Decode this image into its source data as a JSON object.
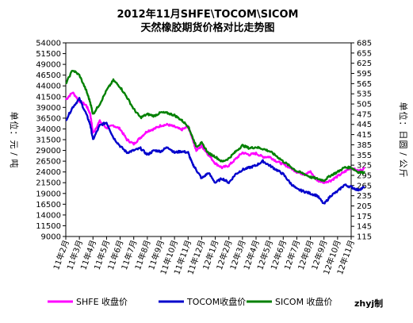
{
  "chart_data": {
    "type": "line",
    "title": "2012年11月SHFE\\TOCOM\\SICOM",
    "subtitle": "天然橡胶期货价格对比走势图",
    "ylabel_left": "单位：元/吨",
    "ylabel_right": "单位：日圆/公斤",
    "watermark": "zhyj制",
    "grid": false,
    "legend_position": "bottom",
    "left_axis": {
      "ylim": [
        9000,
        54000
      ],
      "ticks": [
        "54000",
        "51500",
        "49000",
        "46500",
        "44000",
        "41500",
        "39000",
        "36500",
        "34000",
        "31500",
        "29000",
        "26500",
        "24000",
        "21500",
        "19000",
        "16500",
        "14000",
        "11500",
        "9000"
      ]
    },
    "right_axis": {
      "ylim": [
        115,
        685
      ],
      "ticks": [
        "685",
        "655",
        "625",
        "595",
        "565",
        "535",
        "505",
        "475",
        "445",
        "415",
        "385",
        "355",
        "325",
        "295",
        "265",
        "235",
        "205",
        "175",
        "145",
        "115"
      ]
    },
    "categories": [
      "11年2月",
      "11年3月",
      "11年4月",
      "11年5月",
      "11年6月",
      "11年7月",
      "11年8月",
      "11年9月",
      "11年10月",
      "11年11月",
      "11年12月",
      "12年1月",
      "12年2月",
      "12年3月",
      "12年4月",
      "12年5月",
      "12年6月",
      "12年7月",
      "12年8月",
      "12年9月",
      "12年10月",
      "12年11月"
    ],
    "series": [
      {
        "name": "SHFE 收盘价",
        "axis": "left",
        "color": "#ff00ff",
        "values": [
          [
            0,
            40800
          ],
          [
            0.5,
            42500
          ],
          [
            1,
            40500
          ],
          [
            1.5,
            39500
          ],
          [
            1.8,
            37500
          ],
          [
            2,
            33000
          ],
          [
            2.5,
            35800
          ],
          [
            3,
            34200
          ],
          [
            3.5,
            34800
          ],
          [
            4,
            34000
          ],
          [
            4.5,
            31500
          ],
          [
            5,
            30500
          ],
          [
            5.5,
            32000
          ],
          [
            6,
            33500
          ],
          [
            6.5,
            34000
          ],
          [
            7,
            34800
          ],
          [
            7.5,
            35000
          ],
          [
            8,
            34500
          ],
          [
            8.5,
            33800
          ],
          [
            9,
            34500
          ],
          [
            9.3,
            32000
          ],
          [
            9.6,
            29000
          ],
          [
            10,
            30000
          ],
          [
            10.5,
            28000
          ],
          [
            11,
            26000
          ],
          [
            11.5,
            25000
          ],
          [
            12,
            25500
          ],
          [
            12.5,
            27000
          ],
          [
            13,
            28500
          ],
          [
            13.5,
            28000
          ],
          [
            14,
            28300
          ],
          [
            14.5,
            27500
          ],
          [
            15,
            27500
          ],
          [
            15.5,
            26500
          ],
          [
            16,
            25800
          ],
          [
            16.5,
            25000
          ],
          [
            17,
            24000
          ],
          [
            17.5,
            23500
          ],
          [
            18,
            24000
          ],
          [
            18.5,
            22000
          ],
          [
            19,
            21600
          ],
          [
            19.5,
            22000
          ],
          [
            20,
            23000
          ],
          [
            20.5,
            24000
          ],
          [
            21,
            25000
          ],
          [
            21.5,
            24200
          ],
          [
            22,
            24800
          ]
        ]
      },
      {
        "name": "TOCOM收盘价",
        "axis": "left",
        "color": "#0000cc",
        "values": [
          [
            0,
            36000
          ],
          [
            0.5,
            39000
          ],
          [
            1,
            41000
          ],
          [
            1.5,
            37500
          ],
          [
            1.8,
            35000
          ],
          [
            2,
            31500
          ],
          [
            2.5,
            34800
          ],
          [
            3,
            35500
          ],
          [
            3.5,
            32000
          ],
          [
            4,
            30000
          ],
          [
            4.5,
            28500
          ],
          [
            5,
            29000
          ],
          [
            5.5,
            29500
          ],
          [
            6,
            28000
          ],
          [
            6.5,
            29000
          ],
          [
            7,
            28800
          ],
          [
            7.5,
            29800
          ],
          [
            8,
            28500
          ],
          [
            8.5,
            28800
          ],
          [
            9,
            28500
          ],
          [
            9.3,
            26000
          ],
          [
            9.6,
            24500
          ],
          [
            10,
            22500
          ],
          [
            10.5,
            23800
          ],
          [
            11,
            21500
          ],
          [
            11.5,
            22500
          ],
          [
            12,
            21500
          ],
          [
            12.5,
            23500
          ],
          [
            13,
            24500
          ],
          [
            13.5,
            25000
          ],
          [
            14,
            25500
          ],
          [
            14.5,
            26500
          ],
          [
            15,
            25500
          ],
          [
            15.5,
            24500
          ],
          [
            16,
            23500
          ],
          [
            16.5,
            21500
          ],
          [
            17,
            20000
          ],
          [
            17.5,
            19500
          ],
          [
            18,
            19000
          ],
          [
            18.5,
            18500
          ],
          [
            19,
            16500
          ],
          [
            19.5,
            18500
          ],
          [
            20,
            19500
          ],
          [
            20.5,
            21000
          ],
          [
            21,
            20500
          ],
          [
            21.5,
            19800
          ],
          [
            22,
            20500
          ]
        ]
      },
      {
        "name": "SICOM 收盘价",
        "axis": "right",
        "color": "#008000",
        "values": [
          [
            0,
            565
          ],
          [
            0.5,
            605
          ],
          [
            1,
            590
          ],
          [
            1.5,
            545
          ],
          [
            1.8,
            510
          ],
          [
            2,
            475
          ],
          [
            2.5,
            505
          ],
          [
            3,
            545
          ],
          [
            3.5,
            575
          ],
          [
            4,
            555
          ],
          [
            4.5,
            525
          ],
          [
            5,
            490
          ],
          [
            5.5,
            465
          ],
          [
            6,
            475
          ],
          [
            6.5,
            470
          ],
          [
            7,
            480
          ],
          [
            7.5,
            478
          ],
          [
            8,
            472
          ],
          [
            8.5,
            458
          ],
          [
            9,
            440
          ],
          [
            9.3,
            410
          ],
          [
            9.6,
            380
          ],
          [
            10,
            390
          ],
          [
            10.5,
            360
          ],
          [
            11,
            350
          ],
          [
            11.5,
            335
          ],
          [
            12,
            345
          ],
          [
            12.5,
            365
          ],
          [
            13,
            383
          ],
          [
            13.5,
            375
          ],
          [
            14,
            378
          ],
          [
            14.5,
            373
          ],
          [
            15,
            366
          ],
          [
            15.5,
            352
          ],
          [
            16,
            336
          ],
          [
            16.5,
            322
          ],
          [
            17,
            307
          ],
          [
            17.5,
            300
          ],
          [
            18,
            290
          ],
          [
            18.5,
            285
          ],
          [
            19,
            280
          ],
          [
            19.5,
            295
          ],
          [
            20,
            305
          ],
          [
            20.5,
            318
          ],
          [
            21,
            318
          ],
          [
            21.5,
            305
          ],
          [
            22,
            303
          ]
        ]
      }
    ]
  }
}
